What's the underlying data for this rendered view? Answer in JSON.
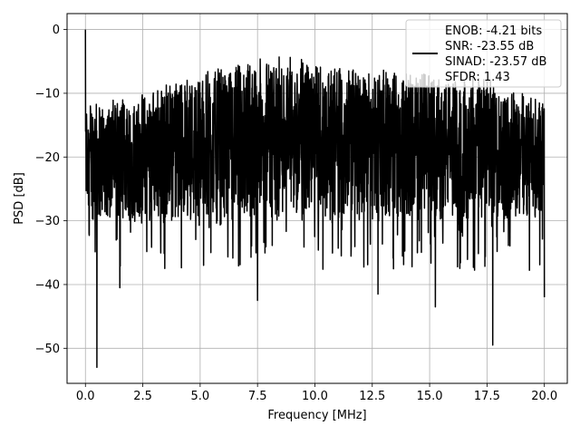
{
  "chart_data": {
    "type": "line",
    "xlabel": "Frequency [MHz]",
    "ylabel": "PSD [dB]",
    "xlim": [
      -0.8,
      21.0
    ],
    "ylim": [
      -55.5,
      2.5
    ],
    "xticks": [
      0.0,
      2.5,
      5.0,
      7.5,
      10.0,
      12.5,
      15.0,
      17.5,
      20.0
    ],
    "xtick_labels": [
      "0.0",
      "2.5",
      "5.0",
      "7.5",
      "10.0",
      "12.5",
      "15.0",
      "17.5",
      "20.0"
    ],
    "yticks": [
      0,
      -10,
      -20,
      -30,
      -40,
      -50
    ],
    "ytick_labels": [
      "0",
      "−10",
      "−20",
      "−30",
      "−40",
      "−50"
    ],
    "grid": true,
    "legend": {
      "placement": "top-right",
      "lines": [
        "ENOB: -4.21 bits",
        "SNR: -23.55 dB",
        "SINAD: -23.57 dB",
        "SFDR: 1.43"
      ]
    },
    "series": [
      {
        "color": "#000000",
        "x_range": [
          0,
          20
        ],
        "noise_upper_envelope": {
          "x": [
            0.2,
            1,
            2.5,
            4,
            5,
            6,
            7.5,
            8.5,
            10,
            11,
            12.5,
            14,
            15,
            16,
            17.5,
            18.5,
            20
          ],
          "y": [
            -12,
            -12,
            -11,
            -9,
            -8,
            -7,
            -6,
            -5.5,
            -6,
            -6.5,
            -7,
            -7.5,
            -8,
            -8.5,
            -9,
            -10,
            -12
          ]
        },
        "noise_floor_dB": -27,
        "highlighted_points": [
          {
            "x": 0.0,
            "y": 0.0
          },
          {
            "x": 0.5,
            "y": -53.0
          },
          {
            "x": 1.5,
            "y": -40.5
          },
          {
            "x": 7.5,
            "y": -42.5
          },
          {
            "x": 12.75,
            "y": -41.5
          },
          {
            "x": 15.25,
            "y": -43.5
          },
          {
            "x": 17.75,
            "y": -49.5
          },
          {
            "x": 20.0,
            "y": -42.0
          }
        ]
      }
    ]
  }
}
